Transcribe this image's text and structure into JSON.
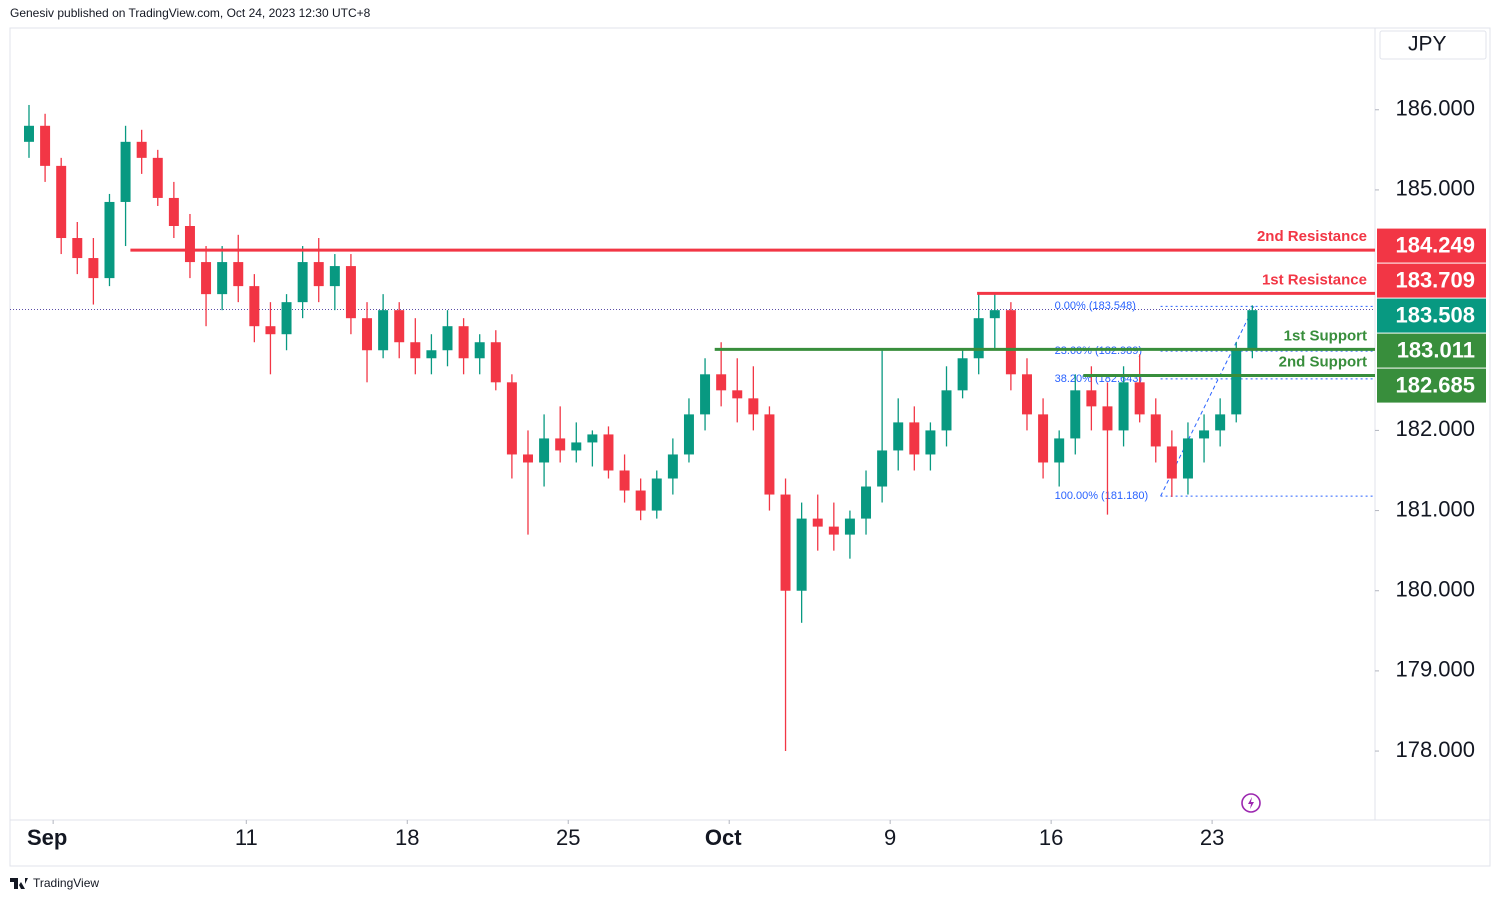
{
  "header": "Genesiv published on TradingView.com, Oct 24, 2023 12:30 UTC+8",
  "footer": "TradingView",
  "chart_data": {
    "type": "candlestick",
    "currency": "JPY",
    "up_color": "#089981",
    "down_color": "#f23645",
    "xlim": [
      -1.34,
      41.06
    ],
    "ylim": [
      177.14,
      187.02
    ],
    "xticks": [
      {
        "value": 0,
        "label": "Sep"
      },
      {
        "value": 6,
        "label": "11"
      },
      {
        "value": 11,
        "label": "18"
      },
      {
        "value": 16,
        "label": "25"
      },
      {
        "value": 21,
        "label": "Oct"
      },
      {
        "value": 26,
        "label": "9"
      },
      {
        "value": 31,
        "label": "16"
      },
      {
        "value": 36,
        "label": "23"
      }
    ],
    "yticks": [
      {
        "value": 178,
        "label": "178.000"
      },
      {
        "value": 179,
        "label": "179.000"
      },
      {
        "value": 180,
        "label": "180.000"
      },
      {
        "value": 181,
        "label": "181.000"
      },
      {
        "value": 182,
        "label": "182.000"
      },
      {
        "value": 185,
        "label": "185.000"
      },
      {
        "value": 186,
        "label": "186.000"
      }
    ],
    "x": [
      -0.75,
      -0.25,
      0.25,
      0.75,
      1.25,
      1.75,
      2.25,
      2.75,
      3.25,
      3.75,
      4.25,
      4.75,
      5.25,
      5.75,
      6.25,
      6.75,
      7.25,
      7.75,
      8.25,
      8.75,
      9.25,
      9.75,
      10.25,
      10.75,
      11.25,
      11.75,
      12.25,
      12.75,
      13.25,
      13.75,
      14.25,
      14.75,
      15.25,
      15.75,
      16.25,
      16.75,
      17.25,
      17.75,
      18.25,
      18.75,
      19.25,
      19.75,
      20.25,
      20.75,
      21.25,
      21.75,
      22.25,
      22.75,
      23.25,
      23.75,
      24.25,
      24.75,
      25.25,
      25.75,
      26.25,
      26.75,
      27.25,
      27.75,
      28.25,
      28.75,
      29.25,
      29.75,
      30.25,
      30.75,
      31.25,
      31.75,
      32.25,
      32.75,
      33.25,
      33.75,
      34.25,
      34.75,
      35.25,
      35.75,
      36.25,
      36.75,
      37.25
    ],
    "open": [
      185.6,
      185.8,
      185.3,
      184.4,
      184.15,
      183.9,
      184.85,
      185.6,
      185.4,
      184.9,
      184.55,
      184.1,
      183.7,
      184.1,
      183.8,
      183.3,
      183.2,
      183.6,
      184.1,
      183.8,
      184.05,
      183.4,
      183.0,
      183.5,
      183.1,
      182.9,
      183.0,
      183.3,
      182.9,
      183.1,
      182.6,
      181.7,
      181.6,
      181.9,
      181.75,
      181.85,
      181.95,
      181.5,
      181.25,
      181.0,
      181.4,
      181.7,
      182.2,
      182.7,
      182.5,
      182.4,
      182.2,
      181.2,
      180.0,
      180.9,
      180.8,
      180.7,
      180.9,
      181.3,
      181.75,
      182.1,
      181.7,
      182.0,
      182.5,
      182.9,
      183.4,
      183.5,
      182.7,
      182.2,
      181.6,
      181.9,
      182.5,
      182.3,
      182.0,
      182.6,
      182.2,
      181.8,
      181.4,
      181.9,
      182.0,
      182.2,
      183.0
    ],
    "high": [
      186.06,
      185.95,
      185.4,
      184.6,
      184.4,
      184.95,
      185.8,
      185.75,
      185.5,
      185.1,
      184.7,
      184.3,
      184.3,
      184.44,
      183.95,
      183.6,
      183.7,
      184.3,
      184.4,
      184.2,
      184.2,
      183.6,
      183.7,
      183.6,
      183.4,
      183.2,
      183.5,
      183.4,
      183.2,
      183.25,
      182.7,
      182.0,
      182.2,
      182.3,
      182.1,
      182.0,
      182.05,
      181.7,
      181.4,
      181.5,
      181.9,
      182.4,
      182.9,
      183.1,
      182.9,
      182.8,
      182.3,
      181.4,
      181.1,
      181.2,
      181.1,
      181.0,
      181.5,
      183.0,
      182.4,
      182.3,
      182.1,
      182.8,
      183.0,
      183.7,
      183.71,
      183.6,
      182.9,
      182.4,
      182.0,
      182.7,
      182.8,
      182.6,
      182.8,
      182.95,
      182.4,
      182.0,
      182.1,
      182.2,
      182.4,
      183.1,
      183.56
    ],
    "low": [
      185.4,
      185.1,
      184.2,
      183.95,
      183.57,
      183.8,
      184.3,
      185.2,
      184.8,
      184.4,
      183.9,
      183.3,
      183.5,
      183.6,
      183.1,
      182.7,
      183.0,
      183.4,
      183.6,
      183.5,
      183.2,
      182.6,
      182.9,
      182.9,
      182.7,
      182.7,
      182.8,
      182.7,
      182.7,
      182.5,
      181.4,
      180.7,
      181.3,
      181.6,
      181.6,
      181.55,
      181.4,
      181.1,
      180.88,
      180.9,
      181.2,
      181.6,
      182.0,
      182.3,
      182.1,
      182.0,
      181.0,
      178.0,
      179.6,
      180.5,
      180.5,
      180.4,
      180.7,
      181.1,
      181.5,
      181.5,
      181.5,
      181.8,
      182.4,
      182.7,
      183.0,
      182.5,
      182.0,
      181.4,
      181.3,
      181.7,
      182.0,
      180.95,
      181.8,
      182.1,
      181.6,
      181.17,
      181.2,
      181.6,
      181.8,
      182.1,
      182.9
    ],
    "close": [
      185.8,
      185.3,
      184.4,
      184.15,
      183.9,
      184.85,
      185.6,
      185.4,
      184.9,
      184.55,
      184.1,
      183.7,
      184.1,
      183.8,
      183.3,
      183.2,
      183.6,
      184.1,
      183.8,
      184.05,
      183.4,
      183.0,
      183.5,
      183.1,
      182.9,
      183.0,
      183.3,
      182.9,
      183.1,
      182.6,
      181.7,
      181.6,
      181.9,
      181.75,
      181.85,
      181.95,
      181.5,
      181.25,
      181.0,
      181.4,
      181.7,
      182.2,
      182.7,
      182.5,
      182.4,
      182.2,
      181.2,
      180.0,
      180.9,
      180.8,
      180.7,
      180.9,
      181.3,
      181.75,
      182.1,
      181.7,
      182.0,
      182.5,
      182.9,
      183.4,
      183.5,
      182.7,
      182.2,
      181.6,
      181.9,
      182.5,
      182.3,
      182.0,
      182.6,
      182.2,
      181.8,
      181.4,
      181.9,
      182.0,
      182.2,
      183.0,
      183.5
    ],
    "current_price": {
      "value": 183.508,
      "color": "#089981",
      "line_color": "#5b4da6"
    },
    "levels": [
      {
        "name": "2nd Resistance",
        "value": 184.249,
        "color": "#f23645",
        "x_start": 2.4
      },
      {
        "name": "1st Resistance",
        "value": 183.709,
        "color": "#f23645",
        "x_start": 28.7
      },
      {
        "name": "1st Support",
        "value": 183.011,
        "color": "#388e3c",
        "x_start": 20.55
      },
      {
        "name": "2nd Support",
        "value": 182.685,
        "color": "#388e3c",
        "x_start": 32.0
      }
    ],
    "fib": {
      "color": "#2962ff",
      "x": [
        34.4,
        37.3
      ],
      "levels": [
        {
          "label": "0.00% (183.548)",
          "value": 183.548
        },
        {
          "label": "23.60% (182.989)",
          "value": 182.989
        },
        {
          "label": "38.20% (182.643)",
          "value": 182.643
        },
        {
          "label": "100.00% (181.180)",
          "value": 181.18
        }
      ]
    }
  }
}
